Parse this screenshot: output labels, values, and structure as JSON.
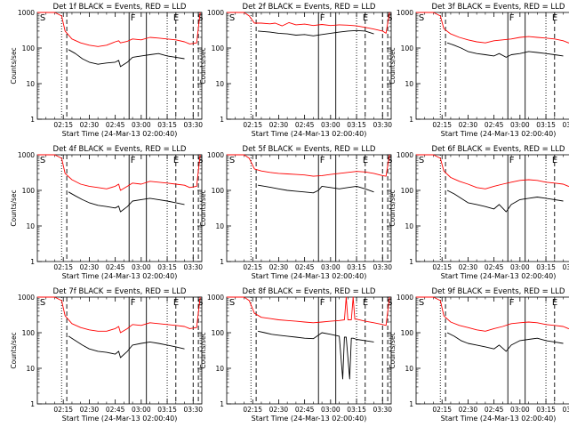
{
  "figure": {
    "ylabel": "Counts/sec",
    "xlabel": "Start Time (24-Mar-13 02:00:40)",
    "ytick_labels": [
      "1",
      "10",
      "100",
      "1000"
    ],
    "xtick_labels": [
      "02:15",
      "02:30",
      "02:45",
      "03:00",
      "03:15",
      "03:30"
    ],
    "marker_labels": [
      "S",
      "F",
      "E",
      "S"
    ],
    "colors": {
      "events": "#000000",
      "lld": "#ff0000",
      "axes": "#000000"
    }
  },
  "chart_data": [
    {
      "type": "line",
      "title": "Det 1f BLACK = Events, RED = LLD",
      "xlabel": "Start Time (24-Mar-13 02:00:40)",
      "ylabel": "Counts/sec",
      "yscale": "log",
      "ylim": [
        1,
        1000
      ],
      "series": [
        {
          "name": "LLD",
          "color": "#ff0000",
          "x": [
            0,
            5,
            10,
            14,
            16,
            20,
            25,
            30,
            35,
            40,
            45,
            47,
            48,
            52,
            55,
            60,
            65,
            70,
            75,
            80,
            85,
            88,
            92,
            94
          ],
          "y": [
            1000,
            1000,
            1000,
            800,
            300,
            180,
            140,
            120,
            110,
            120,
            150,
            160,
            140,
            155,
            180,
            170,
            200,
            190,
            180,
            170,
            150,
            130,
            140,
            1000
          ]
        },
        {
          "name": "Events",
          "color": "#000000",
          "x": [
            18,
            22,
            26,
            30,
            35,
            40,
            45,
            47,
            48,
            52,
            55,
            60,
            65,
            70,
            75,
            80,
            85
          ],
          "y": [
            90,
            70,
            50,
            40,
            35,
            38,
            40,
            45,
            30,
            40,
            55,
            60,
            65,
            70,
            60,
            55,
            50
          ]
        }
      ],
      "markers": {
        "dotted": [
          14,
          75
        ],
        "dashed": [
          17,
          80,
          90,
          93
        ],
        "solid": [
          53,
          63
        ]
      }
    },
    {
      "type": "line",
      "title": "Det 2f BLACK = Events, RED = LLD",
      "xlabel": "Start Time (24-Mar-13 02:00:40)",
      "ylabel": "Counts/sec",
      "yscale": "log",
      "ylim": [
        1,
        1000
      ],
      "series": [
        {
          "name": "LLD",
          "color": "#ff0000",
          "x": [
            0,
            5,
            10,
            13,
            16,
            20,
            25,
            28,
            32,
            36,
            40,
            45,
            50,
            55,
            60,
            65,
            70,
            75,
            80,
            85,
            90,
            92,
            94
          ],
          "y": [
            1000,
            1000,
            1000,
            800,
            500,
            500,
            480,
            500,
            420,
            520,
            450,
            470,
            430,
            460,
            430,
            450,
            440,
            420,
            380,
            340,
            300,
            260,
            1000
          ]
        },
        {
          "name": "Events",
          "color": "#000000",
          "x": [
            18,
            25,
            30,
            35,
            40,
            45,
            50,
            55,
            60,
            65,
            70,
            75,
            80,
            85
          ],
          "y": [
            300,
            280,
            260,
            250,
            230,
            240,
            220,
            240,
            260,
            280,
            300,
            310,
            300,
            250
          ]
        }
      ],
      "markers": {
        "dotted": [
          14,
          75
        ],
        "dashed": [
          17,
          80,
          90,
          93
        ],
        "solid": [
          53,
          63
        ]
      }
    },
    {
      "type": "line",
      "title": "Det 3f BLACK = Events, RED = LLD",
      "xlabel": "Start Time (24-Mar-13 02:00:40)",
      "ylabel": "Counts/sec",
      "yscale": "log",
      "ylim": [
        1,
        1000
      ],
      "series": [
        {
          "name": "LLD",
          "color": "#ff0000",
          "x": [
            0,
            5,
            10,
            14,
            16,
            20,
            25,
            30,
            35,
            40,
            45,
            50,
            55,
            60,
            65,
            70,
            75,
            80,
            85,
            88,
            92,
            94
          ],
          "y": [
            1000,
            1000,
            1000,
            800,
            350,
            250,
            200,
            170,
            150,
            140,
            160,
            170,
            180,
            200,
            210,
            200,
            190,
            180,
            160,
            140,
            150,
            1000
          ]
        },
        {
          "name": "Events",
          "color": "#000000",
          "x": [
            18,
            22,
            26,
            30,
            35,
            40,
            45,
            48,
            52,
            55,
            60,
            65,
            70,
            75,
            80,
            85
          ],
          "y": [
            140,
            120,
            100,
            80,
            70,
            65,
            60,
            70,
            55,
            65,
            70,
            80,
            75,
            70,
            65,
            60
          ]
        }
      ],
      "markers": {
        "dotted": [
          14,
          75
        ],
        "dashed": [
          17,
          80,
          90,
          93
        ],
        "solid": [
          53,
          63
        ]
      }
    },
    {
      "type": "line",
      "title": "Det 4f BLACK = Events, RED = LLD",
      "xlabel": "Start Time (24-Mar-13 02:00:40)",
      "ylabel": "Counts/sec",
      "yscale": "log",
      "ylim": [
        1,
        1000
      ],
      "series": [
        {
          "name": "LLD",
          "color": "#ff0000",
          "x": [
            0,
            5,
            10,
            14,
            16,
            20,
            25,
            30,
            35,
            40,
            45,
            47,
            48,
            52,
            55,
            60,
            65,
            70,
            75,
            80,
            85,
            88,
            92,
            94
          ],
          "y": [
            1000,
            1000,
            1000,
            800,
            300,
            200,
            150,
            130,
            120,
            110,
            130,
            150,
            100,
            130,
            160,
            150,
            180,
            170,
            160,
            150,
            140,
            120,
            130,
            1000
          ]
        },
        {
          "name": "Events",
          "color": "#000000",
          "x": [
            18,
            22,
            26,
            30,
            35,
            40,
            45,
            47,
            48,
            52,
            55,
            60,
            65,
            70,
            75,
            80,
            85
          ],
          "y": [
            90,
            70,
            55,
            45,
            38,
            35,
            32,
            36,
            25,
            35,
            50,
            55,
            60,
            55,
            50,
            45,
            40
          ]
        }
      ],
      "markers": {
        "dotted": [
          14,
          75
        ],
        "dashed": [
          17,
          80,
          90,
          93
        ],
        "solid": [
          53,
          63
        ]
      }
    },
    {
      "type": "line",
      "title": "Det 5f BLACK = Events, RED = LLD",
      "xlabel": "Start Time (24-Mar-13 02:00:40)",
      "ylabel": "Counts/sec",
      "yscale": "log",
      "ylim": [
        1,
        1000
      ],
      "series": [
        {
          "name": "LLD",
          "color": "#ff0000",
          "x": [
            0,
            5,
            10,
            13,
            16,
            20,
            25,
            30,
            35,
            40,
            45,
            50,
            55,
            60,
            65,
            70,
            75,
            80,
            85,
            90,
            92,
            94
          ],
          "y": [
            1000,
            1000,
            1000,
            800,
            400,
            350,
            320,
            300,
            290,
            280,
            270,
            250,
            260,
            280,
            300,
            320,
            340,
            330,
            300,
            260,
            250,
            1000
          ]
        },
        {
          "name": "Events",
          "color": "#000000",
          "x": [
            18,
            22,
            26,
            30,
            35,
            40,
            45,
            50,
            53,
            55,
            60,
            65,
            70,
            75,
            80,
            85
          ],
          "y": [
            140,
            130,
            120,
            110,
            100,
            95,
            90,
            85,
            100,
            130,
            120,
            110,
            120,
            130,
            110,
            90
          ]
        }
      ],
      "markers": {
        "dotted": [
          14,
          75
        ],
        "dashed": [
          17,
          80,
          90,
          93
        ],
        "solid": [
          53,
          63
        ]
      }
    },
    {
      "type": "line",
      "title": "Det 6f BLACK = Events, RED = LLD",
      "xlabel": "Start Time (24-Mar-13 02:00:40)",
      "ylabel": "Counts/sec",
      "yscale": "log",
      "ylim": [
        1,
        1000
      ],
      "series": [
        {
          "name": "LLD",
          "color": "#ff0000",
          "x": [
            0,
            5,
            10,
            14,
            16,
            20,
            25,
            30,
            35,
            40,
            45,
            50,
            55,
            60,
            65,
            70,
            75,
            80,
            85,
            88,
            92,
            94
          ],
          "y": [
            1000,
            1000,
            1000,
            800,
            350,
            230,
            180,
            150,
            120,
            110,
            130,
            150,
            170,
            190,
            200,
            190,
            170,
            160,
            150,
            130,
            140,
            1000
          ]
        },
        {
          "name": "Events",
          "color": "#000000",
          "x": [
            18,
            22,
            26,
            30,
            35,
            40,
            45,
            48,
            52,
            55,
            60,
            65,
            70,
            75,
            80,
            85
          ],
          "y": [
            100,
            80,
            60,
            45,
            40,
            35,
            30,
            40,
            25,
            40,
            55,
            60,
            65,
            60,
            55,
            50
          ]
        }
      ],
      "markers": {
        "dotted": [
          14,
          75
        ],
        "dashed": [
          17,
          80,
          90,
          93
        ],
        "solid": [
          53,
          63
        ]
      }
    },
    {
      "type": "line",
      "title": "Det 7f BLACK = Events, RED = LLD",
      "xlabel": "Start Time (24-Mar-13 02:00:40)",
      "ylabel": "Counts/sec",
      "yscale": "log",
      "ylim": [
        1,
        1000
      ],
      "series": [
        {
          "name": "LLD",
          "color": "#ff0000",
          "x": [
            0,
            5,
            10,
            14,
            16,
            20,
            25,
            30,
            35,
            40,
            45,
            47,
            48,
            52,
            55,
            60,
            65,
            70,
            75,
            80,
            85,
            88,
            92,
            94
          ],
          "y": [
            1000,
            1000,
            1000,
            800,
            300,
            180,
            140,
            120,
            110,
            110,
            130,
            150,
            100,
            130,
            170,
            160,
            190,
            180,
            170,
            160,
            150,
            130,
            140,
            1000
          ]
        },
        {
          "name": "Events",
          "color": "#000000",
          "x": [
            18,
            22,
            26,
            30,
            35,
            40,
            45,
            47,
            48,
            52,
            55,
            60,
            65,
            70,
            75,
            80,
            85
          ],
          "y": [
            80,
            60,
            45,
            35,
            30,
            28,
            25,
            30,
            20,
            30,
            45,
            50,
            55,
            50,
            45,
            40,
            35
          ]
        }
      ],
      "markers": {
        "dotted": [
          14,
          75
        ],
        "dashed": [
          17,
          80,
          90,
          93
        ],
        "solid": [
          53,
          63
        ]
      }
    },
    {
      "type": "line",
      "title": "Det 8f BLACK = Events, RED = LLD",
      "xlabel": "Start Time (24-Mar-13 02:00:40)",
      "ylabel": "Counts/sec",
      "yscale": "log",
      "ylim": [
        1,
        1000
      ],
      "series": [
        {
          "name": "LLD",
          "color": "#ff0000",
          "x": [
            0,
            5,
            10,
            13,
            16,
            20,
            25,
            30,
            35,
            40,
            45,
            50,
            55,
            60,
            65,
            68,
            69,
            70,
            72,
            73,
            74,
            75,
            80,
            85,
            90,
            92,
            94
          ],
          "y": [
            1000,
            1000,
            1000,
            800,
            350,
            270,
            250,
            230,
            220,
            210,
            200,
            190,
            200,
            210,
            220,
            230,
            1000,
            230,
            230,
            1000,
            240,
            240,
            210,
            190,
            170,
            160,
            1000
          ]
        },
        {
          "name": "Events",
          "color": "#000000",
          "x": [
            18,
            22,
            26,
            30,
            35,
            40,
            45,
            50,
            53,
            55,
            60,
            65,
            67,
            68,
            69,
            71,
            72,
            73,
            75,
            80,
            85
          ],
          "y": [
            110,
            100,
            90,
            85,
            80,
            75,
            70,
            68,
            85,
            100,
            90,
            80,
            5,
            75,
            75,
            5,
            70,
            70,
            65,
            60,
            55
          ]
        }
      ],
      "markers": {
        "dotted": [
          14,
          75
        ],
        "dashed": [
          17,
          80,
          90,
          93
        ],
        "solid": [
          53,
          63
        ]
      }
    },
    {
      "type": "line",
      "title": "Det 9f BLACK = Events, RED = LLD",
      "xlabel": "Start Time (24-Mar-13 02:00:40)",
      "ylabel": "Counts/sec",
      "yscale": "log",
      "ylim": [
        1,
        1000
      ],
      "series": [
        {
          "name": "LLD",
          "color": "#ff0000",
          "x": [
            0,
            5,
            10,
            14,
            16,
            20,
            25,
            30,
            35,
            40,
            45,
            50,
            55,
            60,
            65,
            70,
            75,
            80,
            85,
            88,
            92,
            94
          ],
          "y": [
            1000,
            1000,
            1000,
            800,
            300,
            200,
            160,
            140,
            120,
            110,
            130,
            150,
            180,
            190,
            200,
            190,
            170,
            160,
            150,
            130,
            140,
            1000
          ]
        },
        {
          "name": "Events",
          "color": "#000000",
          "x": [
            18,
            22,
            26,
            30,
            35,
            40,
            45,
            48,
            52,
            55,
            60,
            65,
            70,
            75,
            80,
            85
          ],
          "y": [
            100,
            80,
            60,
            50,
            45,
            40,
            35,
            45,
            30,
            45,
            60,
            65,
            70,
            60,
            55,
            50
          ]
        }
      ],
      "markers": {
        "dotted": [
          14,
          75
        ],
        "dashed": [
          17,
          80,
          90,
          93
        ],
        "solid": [
          53,
          63
        ]
      }
    }
  ]
}
